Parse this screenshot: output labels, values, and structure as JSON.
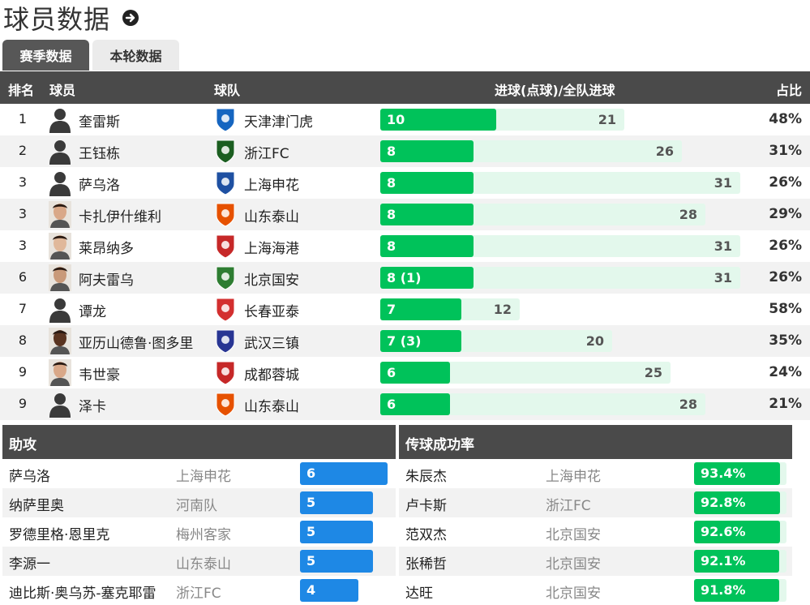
{
  "page": {
    "title": "球员数据"
  },
  "tabs": [
    {
      "label": "赛季数据",
      "active": true
    },
    {
      "label": "本轮数据",
      "active": false
    }
  ],
  "table": {
    "headers": {
      "rank": "排名",
      "player": "球员",
      "team": "球队",
      "goals": "进球(点球)/全队进球",
      "ratio": "占比"
    },
    "rows": [
      {
        "rank": "1",
        "player": "奎雷斯",
        "team": "天津津门虎",
        "goals_label": "10",
        "goals": 10,
        "team_goals": 21,
        "team_goals_label": "21",
        "ratio": "48%",
        "avatar": "placeholder-silhouette",
        "logo_color": "#1565c0"
      },
      {
        "rank": "2",
        "player": "王钰栋",
        "team": "浙江FC",
        "goals_label": "8",
        "goals": 8,
        "team_goals": 26,
        "team_goals_label": "26",
        "ratio": "31%",
        "avatar": "placeholder-silhouette",
        "logo_color": "#1b5e20"
      },
      {
        "rank": "3",
        "player": "萨乌洛",
        "team": "上海申花",
        "goals_label": "8",
        "goals": 8,
        "team_goals": 31,
        "team_goals_label": "31",
        "ratio": "26%",
        "avatar": "placeholder-silhouette",
        "logo_color": "#1e50a2"
      },
      {
        "rank": "3",
        "player": "卡扎伊什维利",
        "team": "山东泰山",
        "goals_label": "8",
        "goals": 8,
        "team_goals": 28,
        "team_goals_label": "28",
        "ratio": "29%",
        "avatar": "photo",
        "logo_color": "#e65100"
      },
      {
        "rank": "3",
        "player": "莱昂纳多",
        "team": "上海海港",
        "goals_label": "8",
        "goals": 8,
        "team_goals": 31,
        "team_goals_label": "31",
        "ratio": "26%",
        "avatar": "photo",
        "logo_color": "#c62828"
      },
      {
        "rank": "6",
        "player": "阿夫雷乌",
        "team": "北京国安",
        "goals_label": "8 (1)",
        "goals": 8,
        "team_goals": 31,
        "team_goals_label": "31",
        "ratio": "26%",
        "avatar": "photo",
        "logo_color": "#2e7d32"
      },
      {
        "rank": "7",
        "player": "谭龙",
        "team": "长春亚泰",
        "goals_label": "7",
        "goals": 7,
        "team_goals": 12,
        "team_goals_label": "12",
        "ratio": "58%",
        "avatar": "placeholder-silhouette",
        "logo_color": "#d32f2f"
      },
      {
        "rank": "8",
        "player": "亚历山德鲁·图多里",
        "team": "武汉三镇",
        "goals_label": "7 (3)",
        "goals": 7,
        "team_goals": 20,
        "team_goals_label": "20",
        "ratio": "35%",
        "avatar": "photo",
        "logo_color": "#283593"
      },
      {
        "rank": "9",
        "player": "韦世豪",
        "team": "成都蓉城",
        "goals_label": "6",
        "goals": 6,
        "team_goals": 25,
        "team_goals_label": "25",
        "ratio": "24%",
        "avatar": "photo",
        "logo_color": "#c62828"
      },
      {
        "rank": "9",
        "player": "泽卡",
        "team": "山东泰山",
        "goals_label": "6",
        "goals": 6,
        "team_goals": 28,
        "team_goals_label": "28",
        "ratio": "21%",
        "avatar": "placeholder-silhouette",
        "logo_color": "#e65100"
      }
    ]
  },
  "assists": {
    "title": "助攻",
    "rows": [
      {
        "player": "萨乌洛",
        "team": "上海申花",
        "value": 6
      },
      {
        "player": "纳萨里奥",
        "team": "河南队",
        "value": 5
      },
      {
        "player": "罗德里格·恩里克",
        "team": "梅州客家",
        "value": 5
      },
      {
        "player": "李源一",
        "team": "山东泰山",
        "value": 5
      },
      {
        "player": "迪比斯·奥乌苏-塞克耶雷",
        "team": "浙江FC",
        "value": 4
      }
    ]
  },
  "passing": {
    "title": "传球成功率",
    "rows": [
      {
        "player": "朱辰杰",
        "team": "上海申花",
        "value": "93.4%",
        "fraction": 0.934
      },
      {
        "player": "卢卡斯",
        "team": "浙江FC",
        "value": "92.8%",
        "fraction": 0.928
      },
      {
        "player": "范双杰",
        "team": "北京国安",
        "value": "92.6%",
        "fraction": 0.926
      },
      {
        "player": "张稀哲",
        "team": "北京国安",
        "value": "92.1%",
        "fraction": 0.921
      },
      {
        "player": "达旺",
        "team": "北京国安",
        "value": "91.8%",
        "fraction": 0.918
      }
    ]
  },
  "colors": {
    "header_bg": "#4a4a4a",
    "goals_bar": "#00c25a",
    "goals_track": "#e3f8ec",
    "assist_bar": "#1e88e5"
  }
}
